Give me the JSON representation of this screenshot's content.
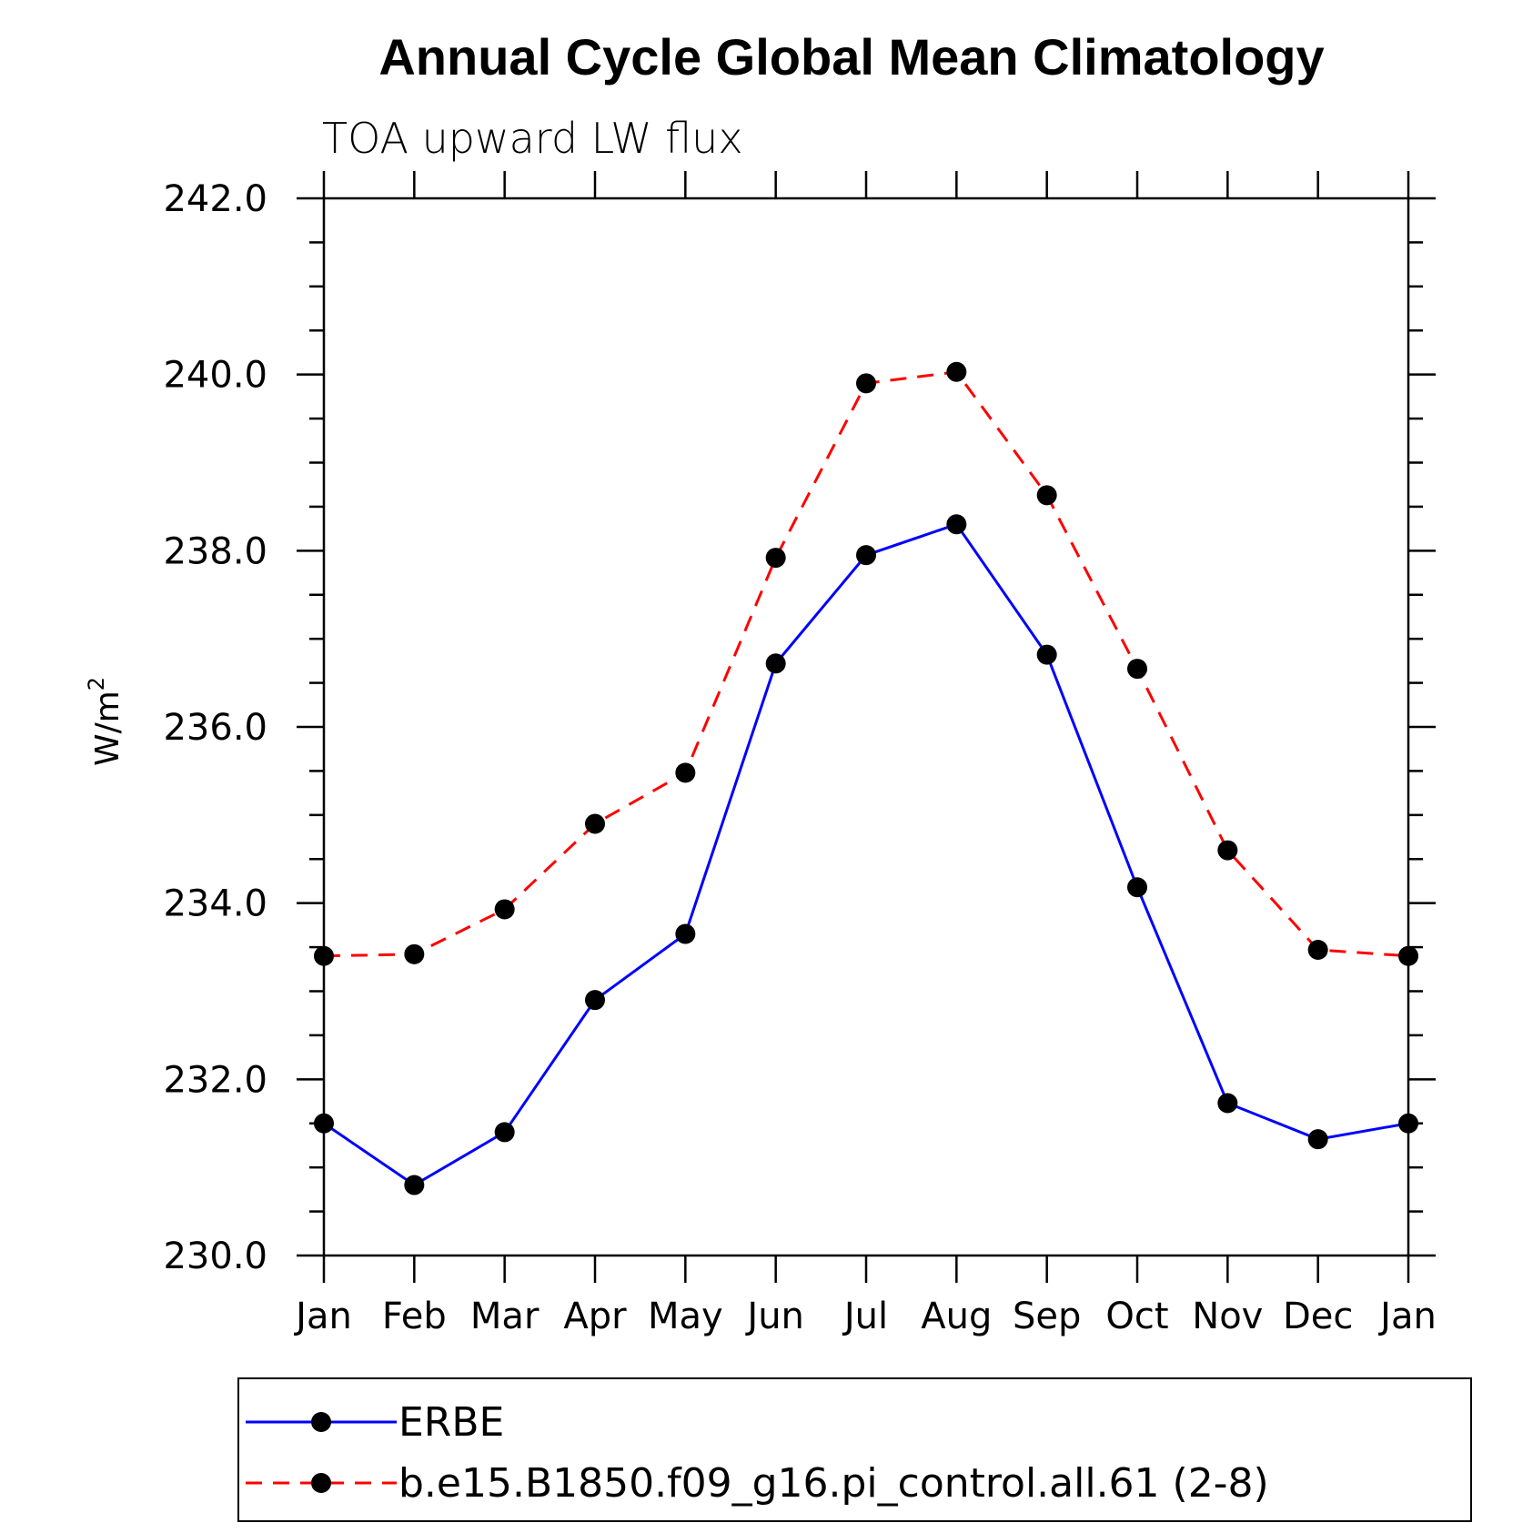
{
  "chart_data": {
    "type": "line",
    "title": "Annual Cycle Global Mean Climatology",
    "subtitle": "TOA upward LW flux",
    "ylabel": "W/m",
    "ylabel_superscript": "2",
    "xlabel": "",
    "categories": [
      "Jan",
      "Feb",
      "Mar",
      "Apr",
      "May",
      "Jun",
      "Jul",
      "Aug",
      "Sep",
      "Oct",
      "Nov",
      "Dec",
      "Jan"
    ],
    "ylim": [
      230.0,
      242.0
    ],
    "yticks": [
      "230.0",
      "232.0",
      "234.0",
      "236.0",
      "238.0",
      "240.0",
      "242.0"
    ],
    "grid": false,
    "legend_position": "bottom",
    "series": [
      {
        "name": "ERBE",
        "color": "#0000ff",
        "line_style": "solid",
        "marker": "filled-circle",
        "values": [
          231.5,
          230.8,
          231.4,
          232.9,
          233.65,
          236.72,
          237.95,
          238.3,
          236.82,
          234.18,
          231.73,
          231.32,
          231.5
        ]
      },
      {
        "name": "b.e15.B1850.f09_g16.pi_control.all.61 (2-8)",
        "color": "#ff0000",
        "line_style": "dashed",
        "marker": "filled-circle",
        "values": [
          233.4,
          233.42,
          233.93,
          234.9,
          235.48,
          237.92,
          239.9,
          240.03,
          238.63,
          236.66,
          234.6,
          233.47,
          233.4
        ]
      }
    ]
  }
}
